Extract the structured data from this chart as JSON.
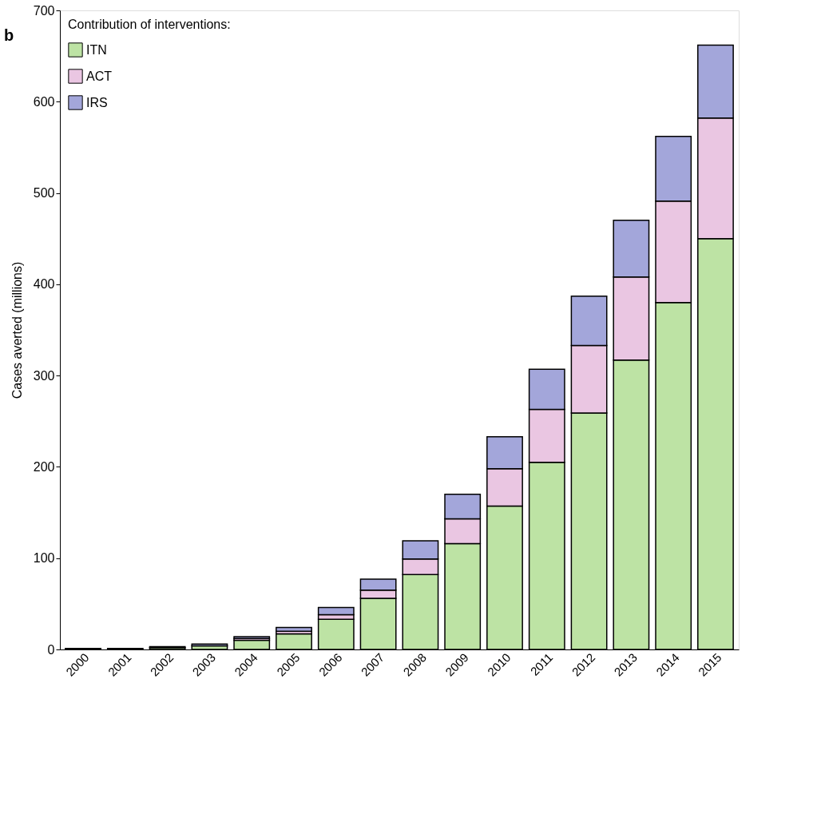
{
  "chart_data": {
    "type": "bar",
    "stacked": true,
    "ylabel": "Cases averted (millions)",
    "legend_title": "Contribution of interventions:",
    "legend": "top left",
    "grid": false,
    "annotations": [
      "b"
    ],
    "categories": [
      "2000",
      "2001",
      "2002",
      "2003",
      "2004",
      "2005",
      "2006",
      "2007",
      "2008",
      "2009",
      "2010",
      "2011",
      "2012",
      "2013",
      "2014",
      "2015"
    ],
    "ylim": [
      0,
      700
    ],
    "yticks": [
      0,
      100,
      200,
      300,
      400,
      500,
      600,
      700
    ],
    "series": [
      {
        "name": "ITN",
        "color": "#bde3a4",
        "values": [
          1,
          1,
          2,
          4,
          10,
          17,
          33,
          56,
          82,
          116,
          157,
          205,
          259,
          317,
          380,
          450
        ]
      },
      {
        "name": "ACT",
        "color": "#eac6e2",
        "values": [
          null,
          null,
          null,
          null,
          2,
          3,
          5,
          9,
          17,
          27,
          41,
          58,
          74,
          91,
          111,
          132
        ]
      },
      {
        "name": "IRS",
        "color": "#a3a6da",
        "values": [
          null,
          null,
          1,
          2,
          2,
          4,
          8,
          12,
          20,
          27,
          35,
          44,
          54,
          62,
          71,
          80
        ]
      }
    ]
  }
}
